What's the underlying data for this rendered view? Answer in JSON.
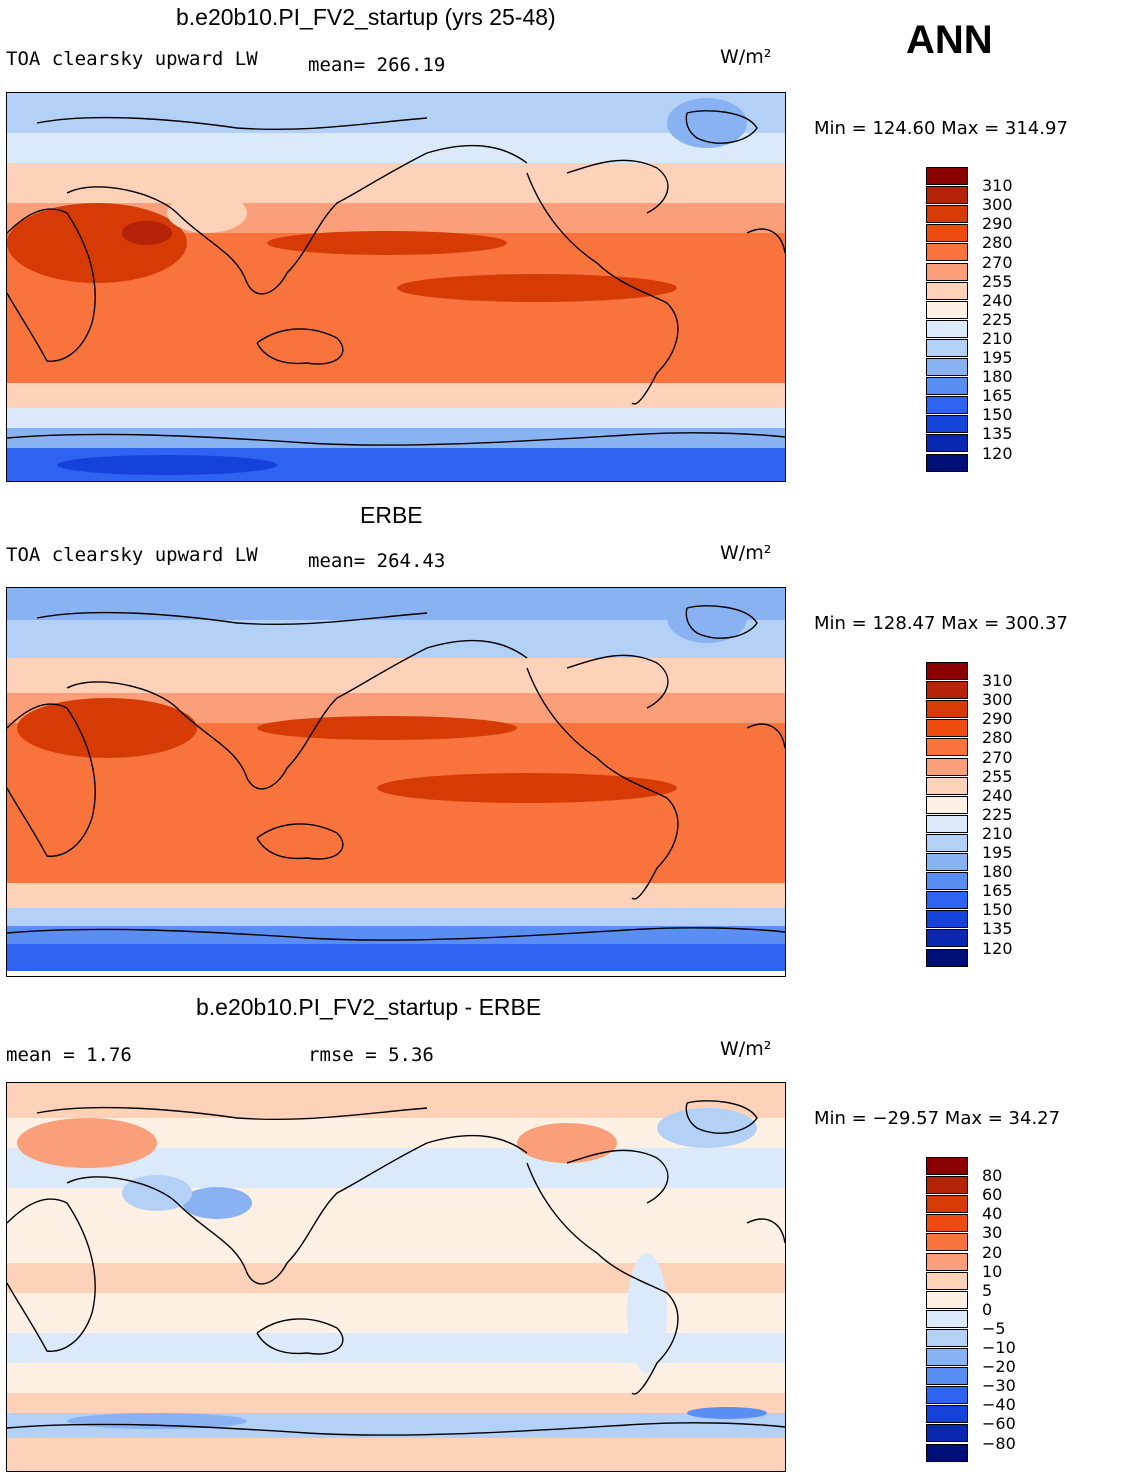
{
  "season": "ANN",
  "panels": [
    {
      "id": "model",
      "title": "b.e20b10.PI_FV2_startup (yrs 25-48)",
      "left_text": "TOA clearsky upward LW",
      "stat_text": "mean= 266.19",
      "units": "W/m²",
      "minmax": "Min = 124.60 Max = 314.97",
      "colorbar_labels": [
        "310",
        "300",
        "290",
        "280",
        "270",
        "255",
        "240",
        "225",
        "210",
        "195",
        "180",
        "165",
        "150",
        "135",
        "120"
      ]
    },
    {
      "id": "obs",
      "title": "ERBE",
      "left_text": "TOA clearsky upward LW",
      "stat_text": "mean= 264.43",
      "units": "W/m²",
      "minmax": "Min = 128.47 Max = 300.37",
      "colorbar_labels": [
        "310",
        "300",
        "290",
        "280",
        "270",
        "255",
        "240",
        "225",
        "210",
        "195",
        "180",
        "165",
        "150",
        "135",
        "120"
      ]
    },
    {
      "id": "diff",
      "title": "b.e20b10.PI_FV2_startup - ERBE",
      "left_text": "mean =   1.76",
      "stat_text": "rmse =   5.36",
      "units": "W/m²",
      "minmax": "Min = −29.57 Max =  34.27",
      "colorbar_labels": [
        "80",
        "60",
        "40",
        "30",
        "20",
        "10",
        "5",
        "0",
        "−5",
        "−10",
        "−20",
        "−30",
        "−40",
        "−60",
        "−80"
      ]
    }
  ],
  "colors": {
    "scale": [
      "#8a0000",
      "#b42207",
      "#d63b05",
      "#ee4b10",
      "#f8743c",
      "#fb9f7a",
      "#fdd2b8",
      "#fff0e4",
      "#dbeafb",
      "#b3d0f7",
      "#88b2f1",
      "#5a8ef2",
      "#2d63f0",
      "#1442d8",
      "#0828b0",
      "#000f78"
    ]
  }
}
